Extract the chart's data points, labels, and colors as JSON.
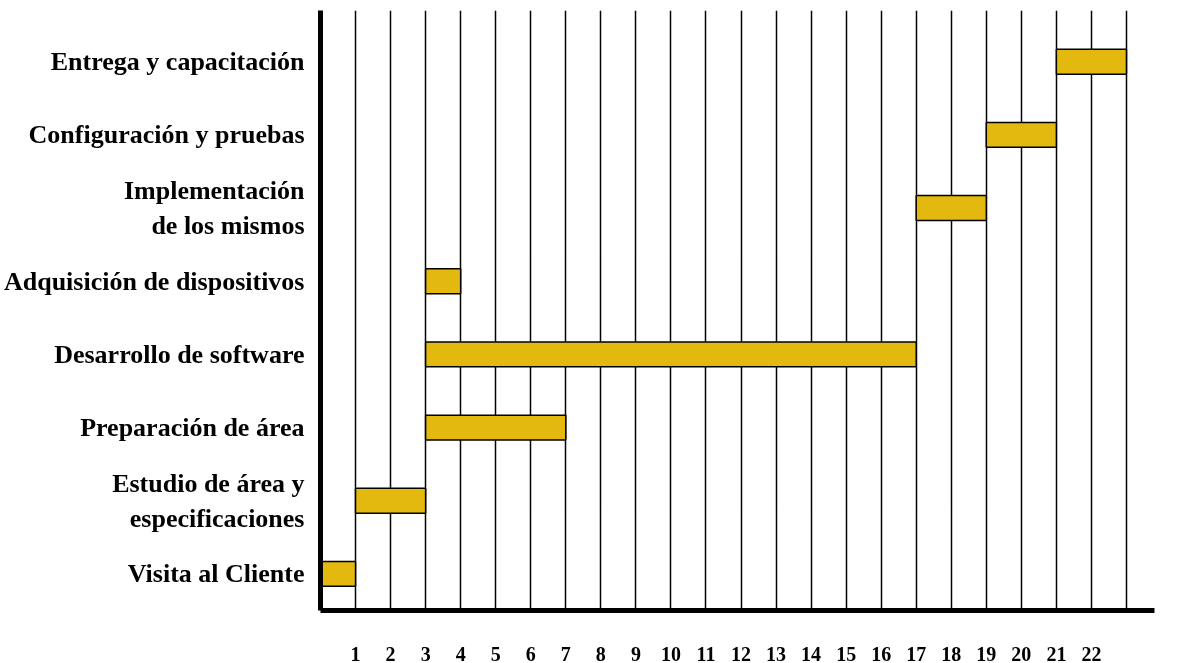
{
  "chart_data": {
    "type": "bar",
    "orientation": "horizontal",
    "categories": [
      "Entrega y capacitación",
      "Configuración y pruebas",
      "Implementación\nde los mismos",
      "Adquisición de dispositivos",
      "Desarrollo de software",
      "Preparación de área",
      "Estudio de área y\nespecificaciones",
      "Visita al Cliente"
    ],
    "base": [
      21,
      19,
      17,
      3,
      3,
      3,
      1,
      0
    ],
    "values": [
      2,
      2,
      2,
      1,
      14,
      4,
      2,
      1
    ],
    "color": "#e3b90f",
    "xlim": [
      0,
      23.8
    ],
    "xticks": [
      1,
      2,
      3,
      4,
      5,
      6,
      7,
      8,
      9,
      10,
      11,
      12,
      13,
      14,
      15,
      16,
      17,
      18,
      19,
      20,
      21,
      22,
      {
        "value": 23,
        "label": null
      }
    ],
    "grid": "x"
  }
}
